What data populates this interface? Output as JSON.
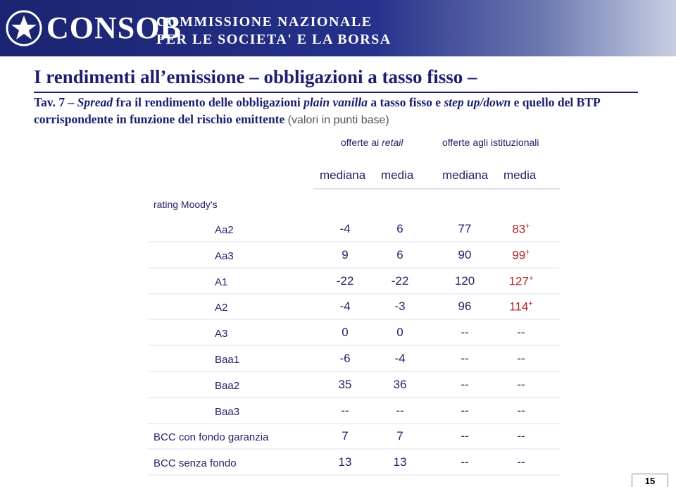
{
  "header": {
    "logo": "CONSOB",
    "line1": "COMMISSIONE NAZIONALE",
    "line2": "PER LE SOCIETA' E LA BORSA"
  },
  "title": "I rendimenti all’emissione – obbligazioni a tasso fisso –",
  "subtitle": [
    "Tav. 7 – ",
    "Spread",
    " fra il rendimento delle obbligazioni ",
    "plain vanilla",
    " a tasso fisso e ",
    "step up/down",
    " e quello del BTP corrispondente in funzione del rischio emittente ",
    "(valori in punti base)"
  ],
  "table": {
    "group_retail": [
      "offerte ai ",
      "retail"
    ],
    "group_inst": "offerte agli istituzionali",
    "subheaders": [
      "mediana",
      "media",
      "mediana",
      "media"
    ],
    "row_header": "rating Moody's",
    "rows": [
      {
        "label": "Aa2",
        "cells": [
          "-4",
          "6",
          "77",
          {
            "text": "83",
            "sup": "+"
          }
        ]
      },
      {
        "label": "Aa3",
        "cells": [
          "9",
          "6",
          "90",
          {
            "text": "99",
            "sup": "+"
          }
        ]
      },
      {
        "label": "A1",
        "cells": [
          "-22",
          "-22",
          "120",
          {
            "text": "127",
            "sup": "+"
          }
        ]
      },
      {
        "label": "A2",
        "cells": [
          "-4",
          "-3",
          "96",
          {
            "text": "114",
            "sup": "+"
          }
        ]
      },
      {
        "label": "A3",
        "cells": [
          "0",
          "0",
          "--",
          "--"
        ]
      },
      {
        "label": "Baa1",
        "cells": [
          "-6",
          "-4",
          "--",
          "--"
        ]
      },
      {
        "label": "Baa2",
        "cells": [
          "35",
          "36",
          "--",
          "--"
        ]
      },
      {
        "label": "Baa3",
        "cells": [
          "--",
          "--",
          "--",
          "--"
        ]
      },
      {
        "label": "BCC con fondo garanzia",
        "cells": [
          "7",
          "7",
          "--",
          "--"
        ]
      },
      {
        "label": "BCC senza fondo",
        "cells": [
          "13",
          "13",
          "--",
          "--"
        ]
      }
    ]
  },
  "page_number": "15"
}
